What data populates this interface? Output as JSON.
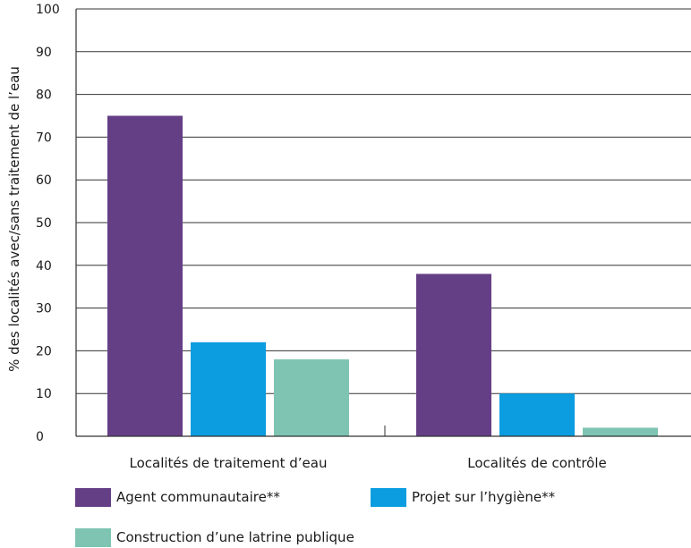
{
  "chart_data": {
    "type": "bar",
    "categories": [
      "Localités de traitement d’eau",
      "Localités de contrôle"
    ],
    "series": [
      {
        "name": "Agent communautaire**",
        "values": [
          75,
          38
        ],
        "color": "#653f86"
      },
      {
        "name": "Projet sur l’hygiène**",
        "values": [
          22,
          10
        ],
        "color": "#0b9ddf"
      },
      {
        "name": "Construction d’une latrine publique",
        "values": [
          18,
          2
        ],
        "color": "#7fc4b3"
      }
    ],
    "title": "",
    "xlabel": "",
    "ylabel": "% des localités avec/sans traitement de l’eau",
    "ylim": [
      0,
      100
    ],
    "yticks": [
      0,
      10,
      20,
      30,
      40,
      50,
      60,
      70,
      80,
      90,
      100
    ],
    "grid": true,
    "legend_position": "bottom"
  }
}
